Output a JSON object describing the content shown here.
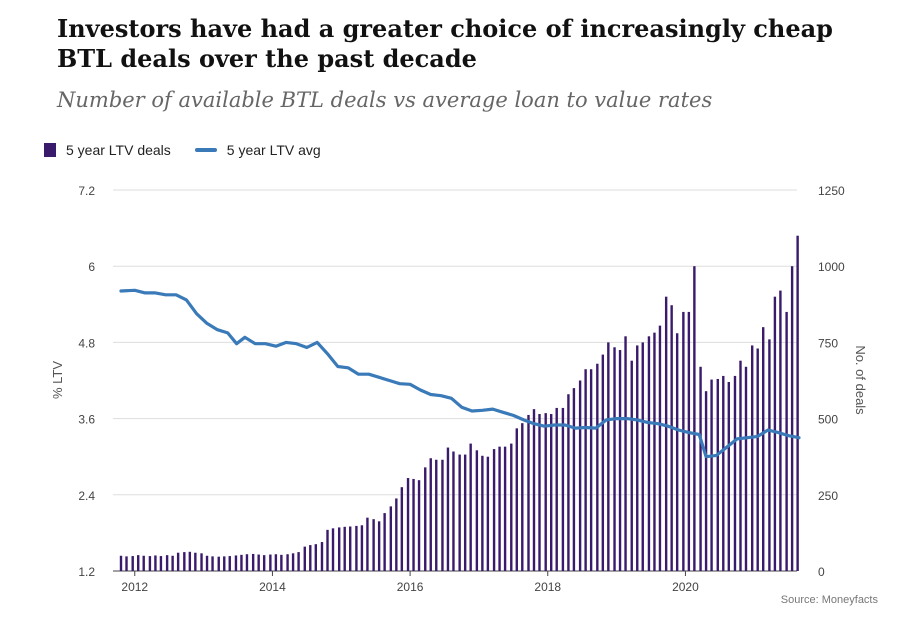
{
  "chart_data": {
    "type": "bar+line",
    "title": "Investors have had a greater choice of increasingly cheap BTL deals over the past decade",
    "subtitle": "Number of available BTL deals vs average loan to value rates",
    "source": "Source: Moneyfacts",
    "left_axis": {
      "label": "% LTV",
      "ticks": [
        "1.2",
        "2.4",
        "3.6",
        "4.8",
        "6",
        "7.2"
      ],
      "range": [
        1.2,
        7.2
      ]
    },
    "right_axis": {
      "label": "No. of deals",
      "ticks": [
        "0",
        "250",
        "500",
        "750",
        "1000",
        "1250"
      ],
      "range": [
        0,
        1250
      ]
    },
    "x_axis": {
      "ticks": [
        "2012",
        "2014",
        "2016",
        "2018",
        "2020"
      ],
      "range": [
        2011.8,
        2021.65
      ]
    },
    "legend": {
      "placement": "top-left",
      "items": [
        "5 year LTV deals",
        "5 year LTV avg"
      ]
    },
    "colors": {
      "bars": "#3a1a6b",
      "line": "#3a7ab8",
      "grid": "#dddddd"
    },
    "series": [
      {
        "name": "5 year LTV deals",
        "type": "bar",
        "axis": "right",
        "x": [
          2011.8,
          2011.88,
          2011.97,
          2012.05,
          2012.13,
          2012.22,
          2012.3,
          2012.38,
          2012.47,
          2012.55,
          2012.63,
          2012.72,
          2012.8,
          2012.88,
          2012.97,
          2013.05,
          2013.13,
          2013.22,
          2013.3,
          2013.38,
          2013.47,
          2013.55,
          2013.63,
          2013.72,
          2013.8,
          2013.88,
          2013.97,
          2014.05,
          2014.13,
          2014.22,
          2014.3,
          2014.38,
          2014.47,
          2014.55,
          2014.63,
          2014.72,
          2014.8,
          2014.88,
          2014.97,
          2015.05,
          2015.13,
          2015.22,
          2015.3,
          2015.38,
          2015.47,
          2015.55,
          2015.63,
          2015.72,
          2015.8,
          2015.88,
          2015.97,
          2016.05,
          2016.13,
          2016.22,
          2016.3,
          2016.38,
          2016.47,
          2016.55,
          2016.63,
          2016.72,
          2016.8,
          2016.88,
          2016.97,
          2017.05,
          2017.13,
          2017.22,
          2017.3,
          2017.38,
          2017.47,
          2017.55,
          2017.63,
          2017.72,
          2017.8,
          2017.88,
          2017.97,
          2018.05,
          2018.13,
          2018.22,
          2018.3,
          2018.38,
          2018.47,
          2018.55,
          2018.63,
          2018.72,
          2018.8,
          2018.88,
          2018.97,
          2019.05,
          2019.13,
          2019.22,
          2019.3,
          2019.38,
          2019.47,
          2019.55,
          2019.63,
          2019.72,
          2019.8,
          2019.88,
          2019.97,
          2020.05,
          2020.13,
          2020.22,
          2020.3,
          2020.38,
          2020.47,
          2020.55,
          2020.63,
          2020.72,
          2020.8,
          2020.88,
          2020.97,
          2021.05,
          2021.13,
          2021.22,
          2021.3,
          2021.38,
          2021.47,
          2021.55,
          2021.63
        ],
        "values": [
          50,
          48,
          49,
          52,
          50,
          49,
          51,
          49,
          52,
          50,
          60,
          62,
          63,
          60,
          58,
          50,
          48,
          47,
          48,
          49,
          51,
          53,
          55,
          56,
          54,
          52,
          54,
          55,
          53,
          55,
          58,
          62,
          80,
          85,
          88,
          95,
          135,
          140,
          143,
          145,
          146,
          148,
          150,
          175,
          170,
          163,
          190,
          212,
          238,
          275,
          305,
          302,
          298,
          340,
          370,
          365,
          365,
          405,
          392,
          382,
          382,
          418,
          396,
          378,
          375,
          400,
          408,
          408,
          418,
          468,
          485,
          512,
          531,
          515,
          518,
          515,
          535,
          535,
          580,
          600,
          625,
          662,
          662,
          680,
          710,
          750,
          734,
          725,
          770,
          690,
          740,
          750,
          770,
          782,
          805,
          900,
          872,
          780,
          850,
          850,
          1000,
          670,
          590,
          628,
          630,
          640,
          620,
          640,
          690,
          670,
          740,
          730,
          800,
          760,
          900,
          920,
          850,
          1000,
          1100
        ]
      },
      {
        "name": "5 year LTV avg",
        "type": "line",
        "axis": "left",
        "x": [
          2011.8,
          2012.0,
          2012.15,
          2012.3,
          2012.45,
          2012.6,
          2012.75,
          2012.9,
          2013.05,
          2013.2,
          2013.35,
          2013.48,
          2013.6,
          2013.75,
          2013.9,
          2014.05,
          2014.2,
          2014.35,
          2014.5,
          2014.65,
          2014.8,
          2014.95,
          2015.1,
          2015.25,
          2015.4,
          2015.55,
          2015.7,
          2015.85,
          2016.0,
          2016.15,
          2016.3,
          2016.45,
          2016.6,
          2016.75,
          2016.9,
          2017.05,
          2017.2,
          2017.35,
          2017.5,
          2017.65,
          2017.8,
          2017.95,
          2018.1,
          2018.25,
          2018.4,
          2018.55,
          2018.7,
          2018.85,
          2019.0,
          2019.15,
          2019.3,
          2019.45,
          2019.6,
          2019.75,
          2019.9,
          2020.05,
          2020.2,
          2020.3,
          2020.45,
          2020.6,
          2020.75,
          2020.9,
          2021.05,
          2021.2,
          2021.35,
          2021.5,
          2021.65
        ],
        "values": [
          5.61,
          5.62,
          5.58,
          5.58,
          5.55,
          5.55,
          5.47,
          5.25,
          5.1,
          5.0,
          4.95,
          4.78,
          4.88,
          4.78,
          4.78,
          4.74,
          4.8,
          4.78,
          4.72,
          4.8,
          4.62,
          4.42,
          4.4,
          4.3,
          4.3,
          4.25,
          4.2,
          4.15,
          4.14,
          4.05,
          3.98,
          3.96,
          3.92,
          3.78,
          3.72,
          3.73,
          3.75,
          3.7,
          3.65,
          3.58,
          3.52,
          3.48,
          3.5,
          3.5,
          3.45,
          3.46,
          3.45,
          3.58,
          3.6,
          3.6,
          3.58,
          3.54,
          3.52,
          3.48,
          3.42,
          3.38,
          3.35,
          3.0,
          3.02,
          3.15,
          3.28,
          3.3,
          3.32,
          3.42,
          3.38,
          3.33,
          3.3
        ]
      }
    ]
  }
}
